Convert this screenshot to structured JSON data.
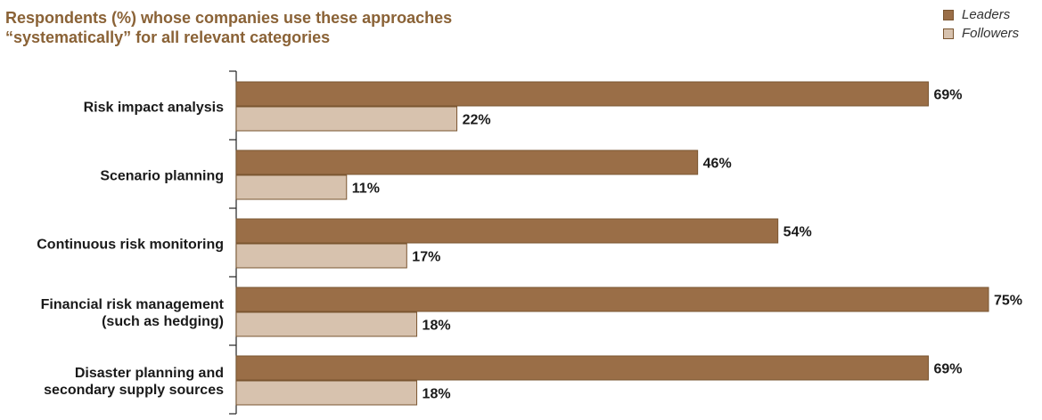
{
  "chart_data": {
    "type": "bar",
    "orientation": "horizontal",
    "title_lines": [
      "Respondents (%) whose companies use these approaches",
      "“systematically” for all relevant categories"
    ],
    "categories": [
      [
        "Risk impact analysis"
      ],
      [
        "Scenario planning"
      ],
      [
        "Continuous risk monitoring"
      ],
      [
        "Financial risk management",
        "(such as hedging)"
      ],
      [
        "Disaster planning and",
        "secondary supply sources"
      ]
    ],
    "series": [
      {
        "name": "Leaders",
        "color": "#9a6e47",
        "values": [
          69,
          46,
          54,
          75,
          69
        ],
        "value_labels": [
          "69%",
          "46%",
          "54%",
          "75%",
          "69%"
        ]
      },
      {
        "name": "Followers",
        "color": "#d7c2ae",
        "values": [
          22,
          11,
          17,
          18,
          18
        ],
        "value_labels": [
          "22%",
          "11%",
          "17%",
          "18%",
          "18%"
        ]
      }
    ],
    "xlim": [
      0,
      75
    ],
    "legend_position": "top-right",
    "grid": false,
    "colors": {
      "title": "#8a6236",
      "bar_border": "#7a5530",
      "axis": "#222222"
    }
  }
}
